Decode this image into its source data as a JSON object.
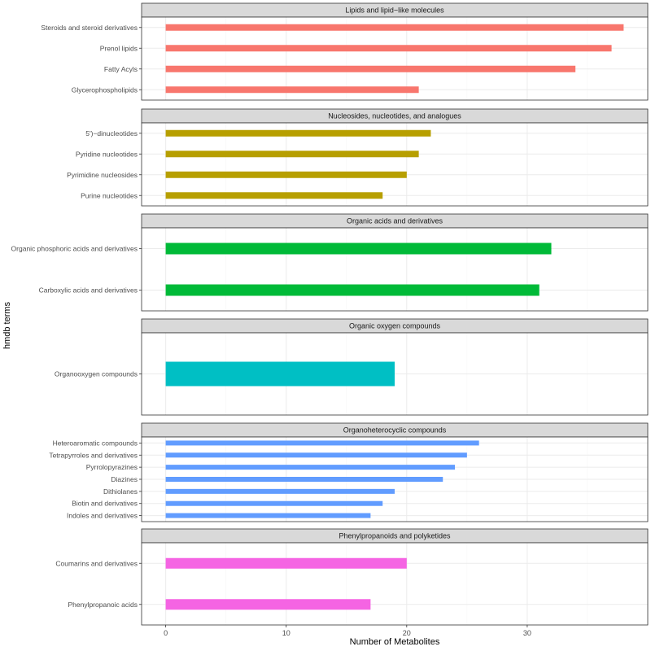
{
  "chart_data": {
    "type": "bar",
    "orientation": "horizontal",
    "faceted": true,
    "xlabel": "Number of Metabolites",
    "ylabel": "hmdb terms",
    "xlim": [
      -2,
      40
    ],
    "xticks": [
      0,
      10,
      20,
      30
    ],
    "grid": true,
    "legend": "none",
    "panels": [
      {
        "title": "Lipids and lipid−like molecules",
        "color": "#F8766D",
        "categories": [
          "Steroids and steroid derivatives",
          "Prenol lipids",
          "Fatty Acyls",
          "Glycerophospholipids"
        ],
        "values": [
          38,
          37,
          34,
          21
        ]
      },
      {
        "title": "Nucleosides, nucleotides, and analogues",
        "color": "#B79F00",
        "categories": [
          "5')−dinucleotides",
          "Pyridine nucleotides",
          "Pyrimidine nucleosides",
          "Purine nucleotides"
        ],
        "values": [
          22,
          21,
          20,
          18
        ]
      },
      {
        "title": "Organic acids and derivatives",
        "color": "#00BA38",
        "categories": [
          "Organic phosphoric acids and derivatives",
          "Carboxylic acids and derivatives"
        ],
        "values": [
          32,
          31
        ]
      },
      {
        "title": "Organic oxygen compounds",
        "color": "#00BFC4",
        "categories": [
          "Organooxygen compounds"
        ],
        "values": [
          19
        ]
      },
      {
        "title": "Organoheterocyclic compounds",
        "color": "#619CFF",
        "categories": [
          "Heteroaromatic compounds",
          "Tetrapyrroles and derivatives",
          "Pyrrolopyrazines",
          "Diazines",
          "Dithiolanes",
          "Biotin and derivatives",
          "Indoles and derivatives"
        ],
        "values": [
          26,
          25,
          24,
          23,
          19,
          18,
          17
        ]
      },
      {
        "title": "Phenylpropanoids and polyketides",
        "color": "#F564E3",
        "categories": [
          "Coumarins and derivatives",
          "Phenylpropanoic acids"
        ],
        "values": [
          20,
          17
        ]
      }
    ]
  }
}
